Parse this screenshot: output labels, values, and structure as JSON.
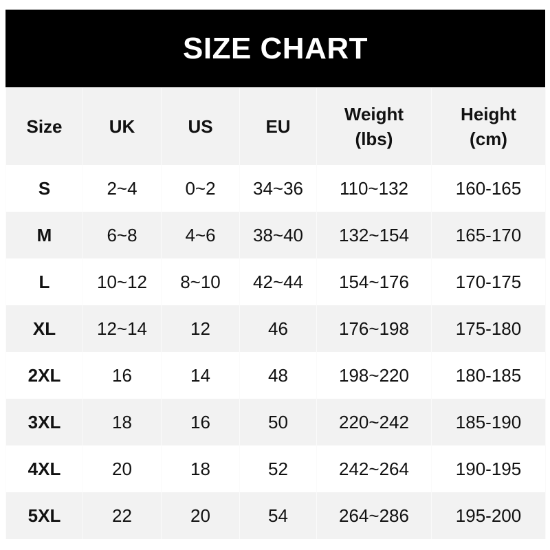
{
  "title": "SIZE CHART",
  "columns": [
    [
      "Size"
    ],
    [
      "UK"
    ],
    [
      "US"
    ],
    [
      "EU"
    ],
    [
      "Weight",
      "(lbs)"
    ],
    [
      "Height",
      "(cm)"
    ]
  ],
  "rows": [
    [
      "S",
      "2~4",
      "0~2",
      "34~36",
      "110~132",
      "160-165"
    ],
    [
      "M",
      "6~8",
      "4~6",
      "38~40",
      "132~154",
      "165-170"
    ],
    [
      "L",
      "10~12",
      "8~10",
      "42~44",
      "154~176",
      "170-175"
    ],
    [
      "XL",
      "12~14",
      "12",
      "46",
      "176~198",
      "175-180"
    ],
    [
      "2XL",
      "16",
      "14",
      "48",
      "198~220",
      "180-185"
    ],
    [
      "3XL",
      "18",
      "16",
      "50",
      "220~242",
      "185-190"
    ],
    [
      "4XL",
      "20",
      "18",
      "52",
      "242~264",
      "190-195"
    ],
    [
      "5XL",
      "22",
      "20",
      "54",
      "264~286",
      "195-200"
    ]
  ],
  "colors": {
    "banner": "#000000",
    "banner_text": "#ffffff",
    "stripe": "#f2f2f2"
  }
}
